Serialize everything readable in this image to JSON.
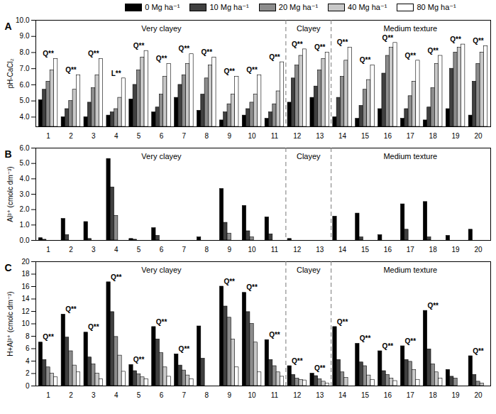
{
  "chart_data": [
    {
      "type": "bar",
      "title": "A",
      "ylabel": "pH-CaCl₂",
      "legend": "top",
      "categories": [
        "1",
        "2",
        "3",
        "4",
        "5",
        "6",
        "7",
        "8",
        "9",
        "10",
        "11",
        "12",
        "13",
        "14",
        "15",
        "16",
        "17",
        "18",
        "19",
        "20"
      ],
      "ylim": [
        3.4,
        10
      ],
      "yticks": [
        4,
        5,
        6,
        7,
        8,
        9,
        10
      ],
      "series": [
        {
          "name": "0 Mg ha⁻¹",
          "color": "#000000",
          "values": [
            5.05,
            4.0,
            4.0,
            4.1,
            5.1,
            4.3,
            5.2,
            4.4,
            3.8,
            4.1,
            3.9,
            4.9,
            5.2,
            4.0,
            3.9,
            4.5,
            3.9,
            3.8,
            4.5,
            4.1
          ]
        },
        {
          "name": "10 Mg ha⁻¹",
          "color": "#404040",
          "values": [
            5.7,
            4.5,
            4.9,
            4.3,
            6.0,
            4.6,
            6.0,
            5.4,
            4.3,
            4.5,
            4.3,
            6.4,
            5.9,
            5.2,
            4.7,
            6.7,
            4.5,
            4.6,
            7.0,
            6.2
          ]
        },
        {
          "name": "20 Mg ha⁻¹",
          "color": "#8c8c8c",
          "values": [
            6.2,
            5.0,
            5.8,
            4.5,
            6.9,
            5.4,
            6.6,
            6.4,
            4.8,
            4.9,
            4.8,
            7.2,
            6.9,
            6.5,
            5.7,
            7.8,
            5.3,
            5.8,
            8.0,
            7.3
          ]
        },
        {
          "name": "40 Mg ha⁻¹",
          "color": "#c8c8c8",
          "values": [
            6.9,
            5.7,
            6.6,
            5.2,
            7.7,
            6.5,
            7.3,
            7.2,
            5.4,
            5.4,
            5.6,
            7.8,
            7.6,
            7.5,
            6.3,
            8.3,
            6.2,
            7.3,
            8.3,
            8.0
          ]
        },
        {
          "name": "80 Mg ha⁻¹",
          "color": "#ffffff",
          "values": [
            7.6,
            6.6,
            7.6,
            6.4,
            8.1,
            7.3,
            7.9,
            7.7,
            6.5,
            6.6,
            7.4,
            8.2,
            8.0,
            8.3,
            7.2,
            8.6,
            7.5,
            7.8,
            8.5,
            8.4
          ]
        }
      ],
      "annotations": [
        "Q**",
        "Q**",
        "Q**",
        "L**",
        "Q**",
        "Q**",
        "Q**",
        "Q**",
        "Q**",
        "Q**",
        "Q**",
        "Q**",
        "Q**",
        "Q**",
        "Q**",
        "Q**",
        "Q**",
        "Q**",
        "Q**",
        "Q**"
      ],
      "sections": [
        {
          "label": "Very clayey",
          "from": "1",
          "to": "11"
        },
        {
          "label": "Clayey",
          "from": "12",
          "to": "13"
        },
        {
          "label": "Medium texture",
          "from": "14",
          "to": "20"
        }
      ]
    },
    {
      "type": "bar",
      "title": "B",
      "ylabel": "Al³⁺ (cmolc dm⁻³)",
      "categories": [
        "1",
        "2",
        "3",
        "4",
        "5",
        "6",
        "7",
        "8",
        "9",
        "10",
        "11",
        "12",
        "13",
        "14",
        "15",
        "16",
        "17",
        "18",
        "19",
        "20"
      ],
      "ylim": [
        0,
        6
      ],
      "yticks": [
        0,
        1,
        2,
        3,
        4,
        5,
        6
      ],
      "series": [
        {
          "name": "0 Mg ha⁻¹",
          "color": "#000000",
          "values": [
            0.15,
            1.4,
            1.2,
            5.3,
            0.1,
            0.8,
            0,
            0.2,
            3.35,
            2.25,
            1.5,
            0.1,
            0,
            1.55,
            1.75,
            0.35,
            2.35,
            2.5,
            0.3,
            0.7
          ]
        },
        {
          "name": "10 Mg ha⁻¹",
          "color": "#404040",
          "values": [
            0.05,
            0.35,
            0.1,
            3.45,
            0.05,
            0.3,
            0,
            0,
            1.15,
            0.6,
            0.4,
            0,
            0,
            0,
            0.2,
            0,
            0.7,
            0.2,
            0,
            0
          ]
        },
        {
          "name": "20 Mg ha⁻¹",
          "color": "#8c8c8c",
          "values": [
            0,
            0,
            0,
            1.6,
            0,
            0,
            0,
            0,
            0.45,
            0.2,
            0,
            0,
            0,
            0,
            0,
            0,
            0,
            0,
            0,
            0
          ]
        },
        {
          "name": "40 Mg ha⁻¹",
          "color": "#c8c8c8",
          "values": [
            0,
            0,
            0,
            0,
            0,
            0,
            0,
            0,
            0,
            0,
            0,
            0,
            0,
            0,
            0,
            0,
            0,
            0,
            0,
            0
          ]
        },
        {
          "name": "80 Mg ha⁻¹",
          "color": "#ffffff",
          "values": [
            0,
            0,
            0,
            0,
            0,
            0,
            0,
            0,
            0,
            0,
            0,
            0,
            0,
            0,
            0,
            0,
            0,
            0,
            0,
            0
          ]
        }
      ],
      "sections": [
        {
          "label": "Very clayey",
          "from": "1",
          "to": "11"
        },
        {
          "label": "Clayey",
          "from": "12",
          "to": "13"
        },
        {
          "label": "Medium texture",
          "from": "14",
          "to": "20"
        }
      ]
    },
    {
      "type": "bar",
      "title": "C",
      "ylabel": "H+Al³⁺ (cmolc dm⁻³)",
      "categories": [
        "1",
        "2",
        "3",
        "4",
        "5",
        "6",
        "7",
        "8",
        "9",
        "10",
        "11",
        "12",
        "13",
        "14",
        "15",
        "16",
        "17",
        "18",
        "19",
        "20"
      ],
      "ylim": [
        0,
        20
      ],
      "yticks": [
        0,
        2,
        4,
        6,
        8,
        10,
        12,
        14,
        16,
        18,
        20
      ],
      "series": [
        {
          "name": "0 Mg ha⁻¹",
          "color": "#000000",
          "values": [
            7.0,
            11.5,
            8.6,
            16.7,
            3.4,
            9.5,
            5.1,
            9.6,
            16.0,
            15.0,
            7.4,
            3.2,
            2.0,
            9.5,
            6.8,
            5.6,
            6.4,
            12.1,
            2.6,
            4.8
          ]
        },
        {
          "name": "10 Mg ha⁻¹",
          "color": "#404040",
          "values": [
            4.2,
            7.8,
            4.6,
            11.9,
            2.4,
            7.5,
            3.3,
            4.4,
            12.8,
            11.9,
            4.2,
            1.8,
            1.6,
            4.2,
            3.8,
            2.4,
            4.2,
            5.9,
            1.5,
            1.8
          ]
        },
        {
          "name": "20 Mg ha⁻¹",
          "color": "#8c8c8c",
          "values": [
            3.0,
            5.6,
            3.5,
            7.9,
            1.9,
            5.3,
            2.5,
            0,
            11.0,
            10.0,
            3.2,
            1.2,
            1.1,
            2.2,
            3.2,
            1.8,
            3.9,
            3.5,
            1.2,
            0.7
          ]
        },
        {
          "name": "40 Mg ha⁻¹",
          "color": "#c8c8c8",
          "values": [
            2.0,
            3.3,
            2.0,
            4.9,
            1.4,
            3.0,
            1.7,
            0,
            7.5,
            7.0,
            2.2,
            1.0,
            0.7,
            1.3,
            1.7,
            1.2,
            2.6,
            2.2,
            0,
            0.4
          ]
        },
        {
          "name": "80 Mg ha⁻¹",
          "color": "#ffffff",
          "values": [
            1.4,
            2.2,
            1.1,
            2.3,
            1.1,
            1.5,
            1.1,
            0,
            3.0,
            2.2,
            1.5,
            0.9,
            0.4,
            0,
            1.0,
            0.8,
            1.0,
            1.2,
            0,
            0
          ]
        }
      ],
      "annotations": [
        "Q**",
        "Q**",
        "Q**",
        "Q**",
        "Q**",
        "Q**",
        "Q**",
        null,
        "Q**",
        "Q**",
        "Q**",
        "Q**",
        "Q**",
        "Q**",
        "Q**",
        "Q**",
        "Q**",
        "Q**",
        null,
        "Q**"
      ],
      "sections": [
        {
          "label": "Very clayey",
          "from": "1",
          "to": "11"
        },
        {
          "label": "Clayey",
          "from": "12",
          "to": "13"
        },
        {
          "label": "Medium texture",
          "from": "14",
          "to": "20"
        }
      ]
    }
  ]
}
